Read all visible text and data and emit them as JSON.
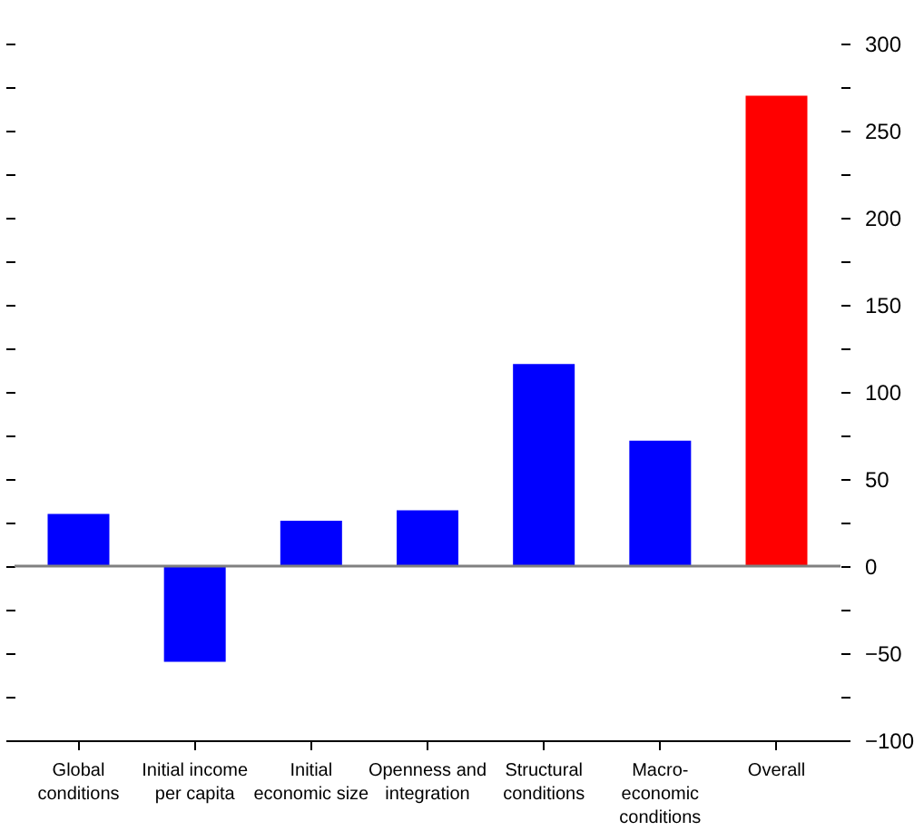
{
  "chart_data": {
    "type": "bar",
    "categories": [
      "Global conditions",
      "Initial income per capita",
      "Initial economic size",
      "Openness and integration",
      "Structural conditions",
      "Macro-economic conditions",
      "Overall"
    ],
    "values": [
      30,
      -55,
      26,
      32,
      116,
      72,
      270
    ],
    "colors": [
      "#0000ff",
      "#0000ff",
      "#0000ff",
      "#0000ff",
      "#0000ff",
      "#0000ff",
      "#ff0000"
    ],
    "ylim": [
      -100,
      300
    ],
    "yticks": [
      -100,
      {
        "value": -75,
        "label": null
      },
      -50,
      {
        "value": -25,
        "label": null
      },
      0,
      {
        "value": 25,
        "label": null
      },
      50,
      {
        "value": 75,
        "label": null
      },
      100,
      {
        "value": 125,
        "label": null
      },
      150,
      {
        "value": 175,
        "label": null
      },
      200,
      {
        "value": 225,
        "label": null
      },
      250,
      {
        "value": 275,
        "label": null
      },
      300
    ],
    "ref_lines": [
      {
        "axis": "y",
        "value": 0,
        "color": "#808080",
        "line_style": "solid"
      }
    ],
    "grid": false
  }
}
